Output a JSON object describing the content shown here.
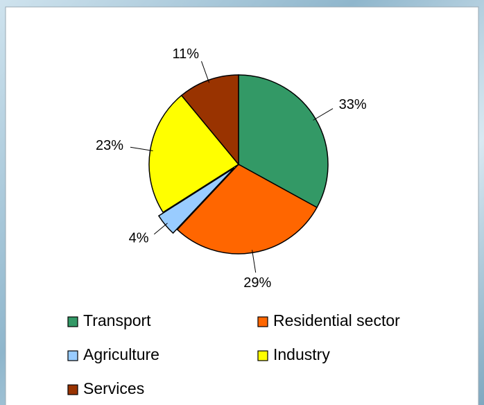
{
  "chart_data": {
    "type": "pie",
    "categories": [
      "Transport",
      "Residential sector",
      "Agriculture",
      "Industry",
      "Services"
    ],
    "values": [
      33,
      29,
      4,
      23,
      11
    ],
    "value_labels": [
      "33%",
      "29%",
      "4%",
      "23%",
      "11%"
    ],
    "colors": [
      "#339966",
      "#ff6600",
      "#99ccff",
      "#ffff00",
      "#993300"
    ],
    "exploded": [
      false,
      false,
      true,
      false,
      false
    ]
  }
}
